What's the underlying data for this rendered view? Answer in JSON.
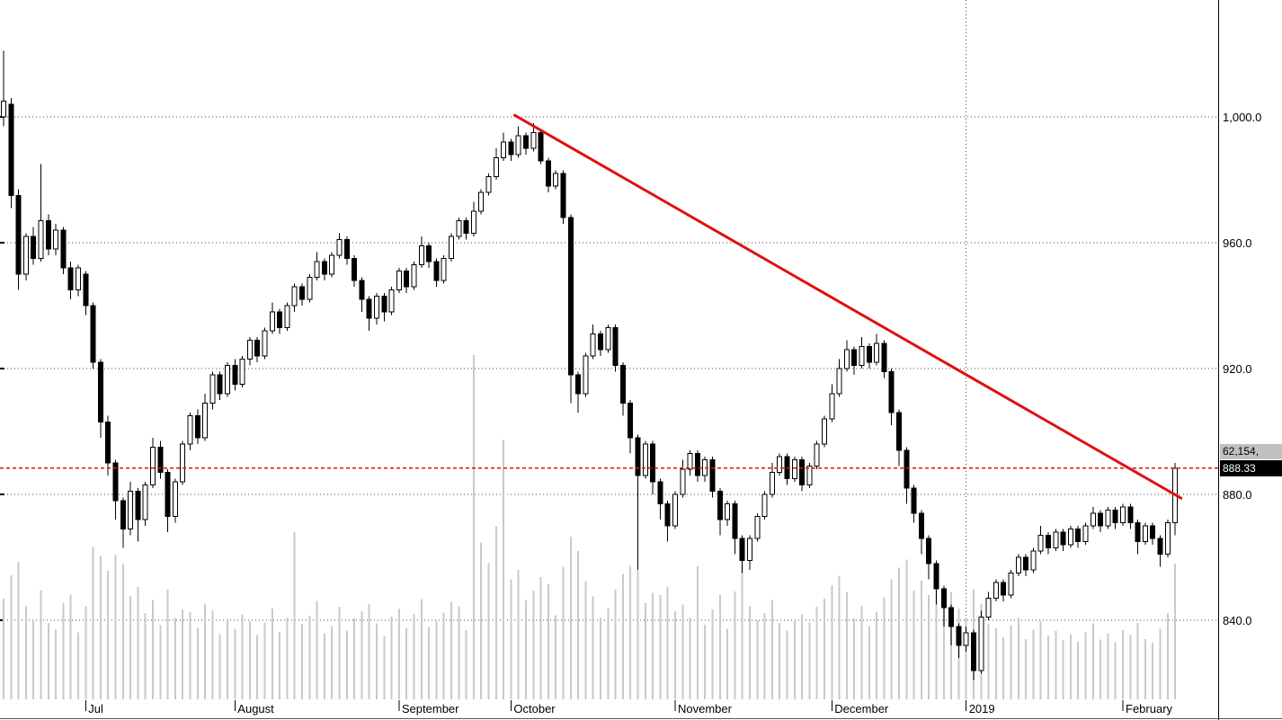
{
  "chart_data": {
    "type": "candlestick",
    "subtype": "daily OHLC with volume overlay",
    "title": "",
    "grid": "dotted",
    "y_axis": {
      "labels": [
        "1,000.0",
        "960.0",
        "920.0",
        "880.0",
        "840.0"
      ],
      "values": [
        1000,
        960,
        920,
        880,
        840
      ],
      "ylim": [
        814,
        1037
      ]
    },
    "x_axis": {
      "ticks": [
        {
          "label": "Jul",
          "index": 11
        },
        {
          "label": "August",
          "index": 31
        },
        {
          "label": "September",
          "index": 53
        },
        {
          "label": "October",
          "index": 68
        },
        {
          "label": "November",
          "index": 90
        },
        {
          "label": "December",
          "index": 111
        },
        {
          "label": "2019",
          "index": 129
        },
        {
          "label": "February",
          "index": 150
        }
      ]
    },
    "separator_line": {
      "index": 129,
      "label": "2019"
    },
    "reference_line": {
      "price": 888.33,
      "style": "dashed",
      "color": "#e01010"
    },
    "trendline": {
      "from": {
        "index": 68.5,
        "price": 1000.5
      },
      "to": {
        "index": 157.8,
        "price": 878.8
      },
      "color": "#e01010"
    },
    "badges": {
      "volume": "62,154,",
      "last_price": "888.33"
    },
    "last_price": 888.33,
    "volume_scale_max": 62154,
    "colors": {
      "up_candle": "#ffffff",
      "down_candle": "#000000",
      "volume_bar": "#c9c9c9",
      "trend_red": "#e01010",
      "badge_gray": "#c0c0c0",
      "badge_black": "#000000"
    },
    "candles": [
      [
        1000,
        1021,
        997,
        1005,
        18200
      ],
      [
        1004,
        1006,
        971,
        975,
        22400
      ],
      [
        975,
        977,
        945,
        950,
        24800
      ],
      [
        950,
        963,
        948,
        962,
        16900
      ],
      [
        962,
        965,
        953,
        955,
        14300
      ],
      [
        955,
        985,
        954,
        967,
        19700
      ],
      [
        967,
        969,
        956,
        958,
        13800
      ],
      [
        958,
        966,
        956,
        964,
        12600
      ],
      [
        964,
        965,
        950,
        952,
        17400
      ],
      [
        952,
        954,
        942,
        945,
        18900
      ],
      [
        945,
        953,
        943,
        952,
        12100
      ],
      [
        950,
        951,
        937,
        940,
        16800
      ],
      [
        940,
        941,
        920,
        922,
        27500
      ],
      [
        922,
        923,
        898,
        903,
        25900
      ],
      [
        903,
        905,
        886,
        890,
        23200
      ],
      [
        890,
        891,
        872,
        878,
        26100
      ],
      [
        878,
        879,
        863,
        869,
        24400
      ],
      [
        869,
        884,
        867,
        881,
        18700
      ],
      [
        881,
        882,
        865,
        872,
        20300
      ],
      [
        872,
        884,
        870,
        883,
        15600
      ],
      [
        883,
        898,
        882,
        895,
        17900
      ],
      [
        895,
        897,
        885,
        887,
        13400
      ],
      [
        887,
        888,
        868,
        873,
        19800
      ],
      [
        873,
        885,
        871,
        884,
        14700
      ],
      [
        884,
        897,
        883,
        896,
        16200
      ],
      [
        896,
        906,
        894,
        905,
        15800
      ],
      [
        905,
        907,
        896,
        898,
        12900
      ],
      [
        898,
        912,
        897,
        909,
        17300
      ],
      [
        909,
        919,
        907,
        918,
        16100
      ],
      [
        918,
        919,
        910,
        912,
        11800
      ],
      [
        912,
        922,
        911,
        921,
        14500
      ],
      [
        921,
        923,
        913,
        915,
        12700
      ],
      [
        915,
        924,
        914,
        923,
        15300
      ],
      [
        923,
        930,
        921,
        929,
        14100
      ],
      [
        929,
        930,
        922,
        924,
        11600
      ],
      [
        924,
        933,
        923,
        932,
        13900
      ],
      [
        932,
        941,
        931,
        938,
        16400
      ],
      [
        938,
        939,
        931,
        933,
        12200
      ],
      [
        933,
        941,
        932,
        940,
        14800
      ],
      [
        940,
        947,
        938,
        946,
        30200
      ],
      [
        946,
        947,
        940,
        942,
        13600
      ],
      [
        942,
        950,
        941,
        949,
        15100
      ],
      [
        949,
        957,
        948,
        954,
        17800
      ],
      [
        954,
        955,
        948,
        950,
        11900
      ],
      [
        950,
        957,
        949,
        956,
        13200
      ],
      [
        956,
        963,
        955,
        961,
        16700
      ],
      [
        961,
        962,
        953,
        955,
        12400
      ],
      [
        955,
        956,
        946,
        948,
        14600
      ],
      [
        948,
        949,
        938,
        942,
        15900
      ],
      [
        942,
        943,
        932,
        936,
        17200
      ],
      [
        936,
        944,
        934,
        943,
        13700
      ],
      [
        943,
        944,
        935,
        938,
        11400
      ],
      [
        938,
        946,
        937,
        945,
        14900
      ],
      [
        945,
        952,
        944,
        951,
        16300
      ],
      [
        951,
        952,
        944,
        946,
        12800
      ],
      [
        946,
        954,
        945,
        953,
        15400
      ],
      [
        953,
        962,
        952,
        959,
        18100
      ],
      [
        959,
        960,
        952,
        954,
        13100
      ],
      [
        954,
        955,
        946,
        948,
        14200
      ],
      [
        948,
        956,
        947,
        955,
        15700
      ],
      [
        955,
        963,
        954,
        962,
        17600
      ],
      [
        962,
        968,
        961,
        967,
        16800
      ],
      [
        967,
        968,
        961,
        963,
        12500
      ],
      [
        963,
        973,
        962,
        970,
        62154
      ],
      [
        970,
        977,
        969,
        976,
        28300
      ],
      [
        976,
        982,
        975,
        981,
        24600
      ],
      [
        981,
        990,
        980,
        987,
        31200
      ],
      [
        987,
        995,
        986,
        992,
        46800
      ],
      [
        992,
        993,
        986,
        988,
        21700
      ],
      [
        988,
        997,
        987,
        994,
        23400
      ],
      [
        994,
        995,
        988,
        990,
        17900
      ],
      [
        990,
        998,
        989,
        995,
        19600
      ],
      [
        995,
        996,
        985,
        986,
        22100
      ],
      [
        986,
        987,
        976,
        978,
        20800
      ],
      [
        978,
        983,
        977,
        982,
        15200
      ],
      [
        982,
        983,
        966,
        968,
        23900
      ],
      [
        968,
        969,
        909,
        918,
        29400
      ],
      [
        918,
        919,
        906,
        912,
        26800
      ],
      [
        912,
        925,
        911,
        924,
        21300
      ],
      [
        924,
        934,
        923,
        931,
        18600
      ],
      [
        931,
        932,
        924,
        926,
        14700
      ],
      [
        926,
        934,
        925,
        933,
        16500
      ],
      [
        933,
        934,
        919,
        921,
        19800
      ],
      [
        921,
        922,
        905,
        909,
        22600
      ],
      [
        909,
        910,
        893,
        898,
        24100
      ],
      [
        898,
        899,
        856,
        886,
        23300
      ],
      [
        886,
        897,
        885,
        896,
        17400
      ],
      [
        896,
        897,
        880,
        884,
        19200
      ],
      [
        884,
        885,
        872,
        877,
        18800
      ],
      [
        877,
        878,
        865,
        870,
        20400
      ],
      [
        870,
        881,
        869,
        880,
        15900
      ],
      [
        880,
        891,
        879,
        888,
        17100
      ],
      [
        888,
        894,
        886,
        893,
        14800
      ],
      [
        893,
        894,
        884,
        886,
        24000
      ],
      [
        886,
        892,
        884,
        891,
        13500
      ],
      [
        891,
        892,
        879,
        881,
        16200
      ],
      [
        881,
        882,
        867,
        872,
        18900
      ],
      [
        872,
        878,
        870,
        877,
        12700
      ],
      [
        877,
        878,
        861,
        866,
        19500
      ],
      [
        866,
        867,
        855,
        859,
        24100
      ],
      [
        859,
        867,
        856,
        866,
        16800
      ],
      [
        866,
        874,
        865,
        873,
        14300
      ],
      [
        873,
        881,
        872,
        880,
        15600
      ],
      [
        880,
        890,
        879,
        887,
        17900
      ],
      [
        887,
        893,
        886,
        892,
        13800
      ],
      [
        892,
        893,
        883,
        885,
        12400
      ],
      [
        885,
        892,
        884,
        891,
        14100
      ],
      [
        891,
        892,
        881,
        883,
        15300
      ],
      [
        883,
        890,
        882,
        889,
        13900
      ],
      [
        889,
        897,
        888,
        896,
        16700
      ],
      [
        896,
        905,
        895,
        904,
        18200
      ],
      [
        904,
        915,
        903,
        912,
        20600
      ],
      [
        912,
        923,
        911,
        920,
        22300
      ],
      [
        920,
        929,
        919,
        926,
        19400
      ],
      [
        926,
        927,
        918,
        921,
        14600
      ],
      [
        921,
        930,
        920,
        927,
        16900
      ],
      [
        927,
        928,
        920,
        922,
        13200
      ],
      [
        922,
        931,
        921,
        928,
        15800
      ],
      [
        928,
        929,
        917,
        919,
        18400
      ],
      [
        919,
        920,
        902,
        906,
        21700
      ],
      [
        906,
        907,
        889,
        894,
        23800
      ],
      [
        894,
        895,
        877,
        882,
        25200
      ],
      [
        882,
        883,
        871,
        874,
        19600
      ],
      [
        874,
        875,
        861,
        866,
        21400
      ],
      [
        866,
        867,
        853,
        858,
        18800
      ],
      [
        858,
        859,
        845,
        850,
        20100
      ],
      [
        850,
        851,
        838,
        844,
        17700
      ],
      [
        844,
        845,
        832,
        838,
        19300
      ],
      [
        838,
        839,
        828,
        832,
        16400
      ],
      [
        832,
        838,
        830,
        836,
        14800
      ],
      [
        836,
        837,
        821,
        824,
        19800
      ],
      [
        824,
        843,
        823,
        841,
        17200
      ],
      [
        841,
        849,
        840,
        847,
        13600
      ],
      [
        847,
        853,
        846,
        852,
        12800
      ],
      [
        852,
        853,
        846,
        848,
        11200
      ],
      [
        848,
        856,
        847,
        855,
        13400
      ],
      [
        855,
        861,
        854,
        860,
        14700
      ],
      [
        860,
        861,
        854,
        856,
        10900
      ],
      [
        856,
        863,
        855,
        862,
        12600
      ],
      [
        862,
        870,
        861,
        867,
        14100
      ],
      [
        867,
        868,
        861,
        863,
        11500
      ],
      [
        863,
        869,
        862,
        868,
        12300
      ],
      [
        868,
        869,
        862,
        864,
        10700
      ],
      [
        864,
        870,
        863,
        869,
        11800
      ],
      [
        869,
        870,
        863,
        865,
        10400
      ],
      [
        865,
        871,
        864,
        870,
        12100
      ],
      [
        870,
        876,
        869,
        874,
        13700
      ],
      [
        874,
        875,
        868,
        870,
        10800
      ],
      [
        870,
        876,
        869,
        875,
        11900
      ],
      [
        875,
        876,
        869,
        871,
        10300
      ],
      [
        871,
        877,
        870,
        876,
        12500
      ],
      [
        876,
        877,
        869,
        871,
        11600
      ],
      [
        871,
        872,
        861,
        865,
        13800
      ],
      [
        865,
        871,
        864,
        870,
        10900
      ],
      [
        870,
        871,
        864,
        866,
        10200
      ],
      [
        866,
        867,
        857,
        861,
        12700
      ],
      [
        861,
        872,
        860,
        871,
        15600
      ],
      [
        871,
        890,
        867,
        888.33,
        24500
      ]
    ]
  }
}
